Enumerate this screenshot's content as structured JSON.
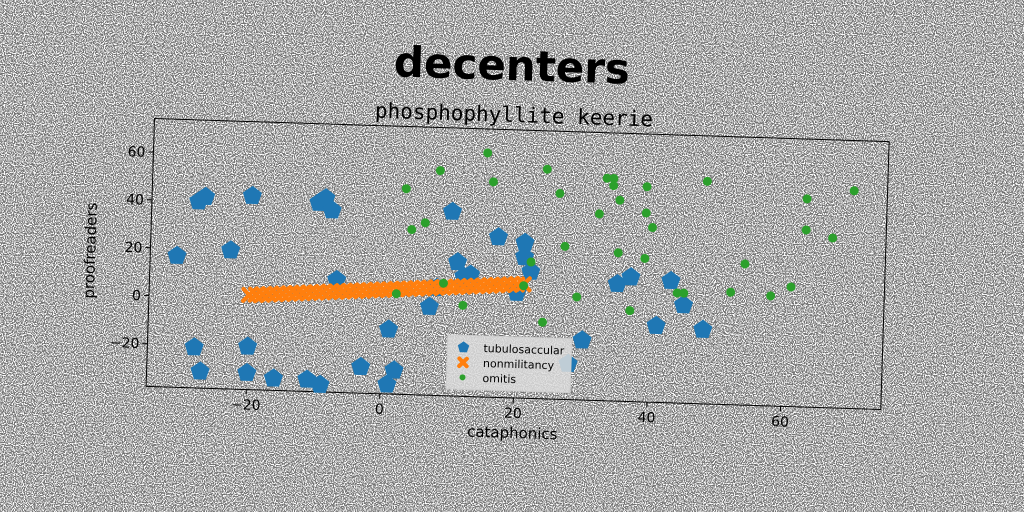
{
  "chart_data": {
    "type": "scatter",
    "suptitle": "decenters",
    "title": "phosphophyllite keerie",
    "xlabel": "cataphonics",
    "ylabel": "proofreaders",
    "xlim": [
      -35,
      75
    ],
    "ylim": [
      -38,
      74
    ],
    "xticks": [
      -20,
      0,
      20,
      40,
      60
    ],
    "yticks": [
      -20,
      0,
      20,
      40,
      60
    ],
    "grid": false,
    "legend_position": "lower-center",
    "series": [
      {
        "name": "tubulosaccular",
        "color": "#1f77b4",
        "marker": "pentagon",
        "points": [
          [
            -28,
            40
          ],
          [
            -27,
            42
          ],
          [
            -20,
            43
          ],
          [
            -10,
            41
          ],
          [
            -9,
            43
          ],
          [
            -8,
            38
          ],
          [
            -31,
            17
          ],
          [
            -23,
            20
          ],
          [
            -7,
            9
          ],
          [
            -28,
            -21
          ],
          [
            -27,
            -31
          ],
          [
            -20,
            -20
          ],
          [
            -20,
            -31
          ],
          [
            -16,
            -33
          ],
          [
            -11,
            -33
          ],
          [
            -9,
            -35
          ],
          [
            -3,
            -27
          ],
          [
            1,
            -34
          ],
          [
            2,
            -28
          ],
          [
            1,
            -11
          ],
          [
            7,
            -1
          ],
          [
            8,
            7
          ],
          [
            10,
            39
          ],
          [
            11,
            18
          ],
          [
            12,
            12
          ],
          [
            13,
            13
          ],
          [
            17,
            29
          ],
          [
            21,
            27
          ],
          [
            21,
            21
          ],
          [
            22,
            15
          ],
          [
            20,
            6
          ],
          [
            30,
            -13
          ],
          [
            28,
            -23
          ],
          [
            35,
            11
          ],
          [
            37,
            14
          ],
          [
            41,
            -6
          ],
          [
            43,
            13
          ],
          [
            45,
            3
          ],
          [
            48,
            -7
          ]
        ]
      },
      {
        "name": "nonmilitancy",
        "color": "#ff7f0e",
        "marker": "x",
        "points": [
          [
            -20,
            1.5
          ],
          [
            -19,
            1.7
          ],
          [
            -18,
            1.9
          ],
          [
            -17,
            2.1
          ],
          [
            -16,
            2.3
          ],
          [
            -15,
            2.5
          ],
          [
            -14,
            2.7
          ],
          [
            -13,
            2.9
          ],
          [
            -12,
            3.1
          ],
          [
            -11,
            3.3
          ],
          [
            -10,
            3.5
          ],
          [
            -9,
            3.7
          ],
          [
            -8,
            3.9
          ],
          [
            -7,
            4.1
          ],
          [
            -6,
            4.3
          ],
          [
            -5,
            4.5
          ],
          [
            -4,
            4.7
          ],
          [
            -3,
            4.9
          ],
          [
            -2,
            5.1
          ],
          [
            -1,
            5.3
          ],
          [
            0,
            5.5
          ],
          [
            1,
            5.7
          ],
          [
            2,
            5.9
          ],
          [
            3,
            6.1
          ],
          [
            4,
            6.3
          ],
          [
            5,
            6.5
          ],
          [
            6,
            6.7
          ],
          [
            7,
            6.9
          ],
          [
            8,
            7.1
          ],
          [
            9,
            7.3
          ],
          [
            10,
            7.5
          ],
          [
            11,
            7.7
          ],
          [
            12,
            7.9
          ],
          [
            13,
            8.1
          ],
          [
            14,
            8.3
          ],
          [
            15,
            8.5
          ],
          [
            16,
            8.7
          ],
          [
            17,
            8.9
          ],
          [
            18,
            9.1
          ],
          [
            19,
            9.3
          ],
          [
            20,
            9.5
          ],
          [
            21,
            9.7
          ]
        ]
      },
      {
        "name": "omitis",
        "color": "#2ca02c",
        "marker": "circle",
        "points": [
          [
            3,
            48
          ],
          [
            4,
            31
          ],
          [
            6,
            34
          ],
          [
            8,
            56
          ],
          [
            15,
            64
          ],
          [
            16,
            52
          ],
          [
            24,
            58
          ],
          [
            26,
            48
          ],
          [
            27,
            26
          ],
          [
            29,
            5
          ],
          [
            32,
            40
          ],
          [
            33,
            55
          ],
          [
            34,
            55
          ],
          [
            34,
            52
          ],
          [
            35,
            46
          ],
          [
            35,
            24
          ],
          [
            37,
            0
          ],
          [
            39,
            22
          ],
          [
            39,
            41
          ],
          [
            39,
            52
          ],
          [
            40,
            35
          ],
          [
            44,
            8
          ],
          [
            45,
            8
          ],
          [
            48,
            55
          ],
          [
            52,
            9
          ],
          [
            54,
            21
          ],
          [
            58,
            8
          ],
          [
            61,
            12
          ],
          [
            63,
            49
          ],
          [
            63,
            36
          ],
          [
            67,
            33
          ],
          [
            70,
            53
          ],
          [
            21,
            9
          ],
          [
            24,
            -6
          ],
          [
            12,
            0
          ],
          [
            2,
            4
          ],
          [
            22,
            19
          ],
          [
            9,
            9
          ]
        ]
      }
    ]
  }
}
